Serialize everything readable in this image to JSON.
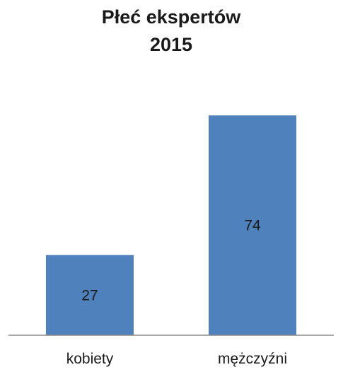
{
  "chart_data": {
    "type": "bar",
    "title": [
      "Płeć ekspertów",
      "2015"
    ],
    "categories": [
      "kobiety",
      "mężczyźni"
    ],
    "values": [
      27,
      74
    ],
    "data_labels": [
      "27",
      "74"
    ],
    "ylim": [
      0,
      80
    ],
    "grid": false,
    "legend": "none",
    "colors": {
      "bar": "#4f81bd",
      "axis": "#8c8c8c",
      "text": "#1a1a1a"
    }
  }
}
